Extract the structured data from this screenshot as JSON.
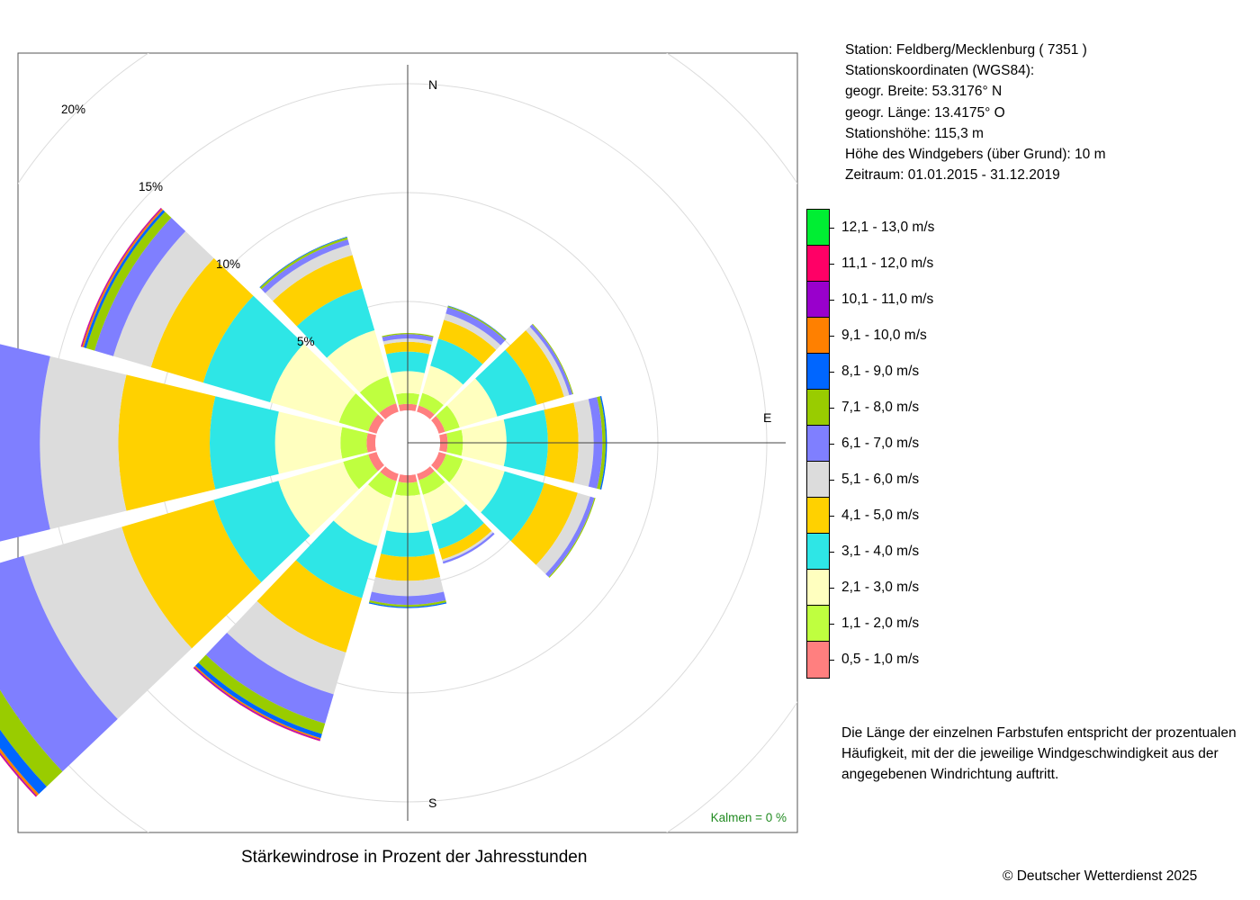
{
  "station": {
    "lines": [
      "Station:  Feldberg/Mecklenburg  ( 7351 )",
      "Stationskoordinaten (WGS84):",
      "geogr. Breite: 53.3176° N",
      "geogr. Länge: 13.4175° O",
      "Stationshöhe: 115,3 m",
      "Höhe des Windgebers (über Grund): 10 m",
      "Zeitraum: 01.01.2015 - 31.12.2019"
    ]
  },
  "note": [
    "Die Länge der einzelnen Farbstufen entspricht der prozentualen",
    "Häufigkeit, mit der die jeweilige Windgeschwindigkeit aus der",
    "angegebenen Windrichtung auftritt."
  ],
  "copyright": "© Deutscher Wetterdienst  2025",
  "chart_data": {
    "type": "windrose",
    "title": "Stärkewindrose in Prozent der Jahresstunden",
    "calm_label": "Kalmen  =  0 %",
    "compass": {
      "N": "N",
      "E": "E",
      "S": "S"
    },
    "radial_ticks": [
      {
        "value": 5,
        "label": "5%"
      },
      {
        "value": 10,
        "label": "10%"
      },
      {
        "value": 15,
        "label": "15%"
      },
      {
        "value": 20,
        "label": "20%"
      }
    ],
    "rmax": 20,
    "sector_width_deg": 30,
    "directions": [
      0,
      30,
      60,
      90,
      120,
      150,
      180,
      210,
      240,
      270,
      300,
      330
    ],
    "classes": [
      {
        "label": "0,5 - 1,0 m/s",
        "color": "#FF7F7F"
      },
      {
        "label": "1,1 - 2,0 m/s",
        "color": "#BFFF3F"
      },
      {
        "label": "2,1 - 3,0 m/s",
        "color": "#FFFFBF"
      },
      {
        "label": "3,1 - 4,0 m/s",
        "color": "#2EE6E6"
      },
      {
        "label": "4,1 - 5,0 m/s",
        "color": "#FFD100"
      },
      {
        "label": "5,1 - 6,0 m/s",
        "color": "#DCDCDC"
      },
      {
        "label": "6,1 - 7,0 m/s",
        "color": "#7F7FFF"
      },
      {
        "label": "7,1 - 8,0 m/s",
        "color": "#99CC00"
      },
      {
        "label": "8,1 - 9,0 m/s",
        "color": "#0066FF"
      },
      {
        "label": "9,1 - 10,0 m/s",
        "color": "#FF8000"
      },
      {
        "label": "10,1 - 11,0 m/s",
        "color": "#9900CC"
      },
      {
        "label": "11,1 - 12,0 m/s",
        "color": "#FF0066"
      },
      {
        "label": "12,1 - 13,0 m/s",
        "color": "#00EE33"
      }
    ],
    "series": [
      {
        "direction": 0,
        "values": [
          0.3,
          0.5,
          1.0,
          0.9,
          0.45,
          0.15,
          0.2,
          0.05,
          0.0,
          0.0,
          0.0,
          0.0,
          0.0
        ]
      },
      {
        "direction": 30,
        "values": [
          0.3,
          0.6,
          1.3,
          1.3,
          0.9,
          0.3,
          0.3,
          0.06,
          0.02,
          0.0,
          0.0,
          0.0,
          0.0
        ]
      },
      {
        "direction": 60,
        "values": [
          0.3,
          0.7,
          1.8,
          1.9,
          1.3,
          0.25,
          0.15,
          0.04,
          0.0,
          0.0,
          0.0,
          0.0,
          0.0
        ]
      },
      {
        "direction": 90,
        "values": [
          0.35,
          0.7,
          2.0,
          1.9,
          1.4,
          0.7,
          0.4,
          0.15,
          0.06,
          0.0,
          0.0,
          0.0,
          0.0
        ]
      },
      {
        "direction": 120,
        "values": [
          0.35,
          0.8,
          2.0,
          1.9,
          1.6,
          0.6,
          0.2,
          0.05,
          0.0,
          0.0,
          0.0,
          0.0,
          0.0
        ]
      },
      {
        "direction": 150,
        "values": [
          0.3,
          0.7,
          1.4,
          1.2,
          0.5,
          0.1,
          0.1,
          0.0,
          0.0,
          0.0,
          0.0,
          0.0,
          0.0
        ]
      },
      {
        "direction": 180,
        "values": [
          0.35,
          0.6,
          1.7,
          1.1,
          1.1,
          0.7,
          0.4,
          0.1,
          0.05,
          0.0,
          0.0,
          0.0,
          0.0
        ]
      },
      {
        "direction": 210,
        "values": [
          0.35,
          0.8,
          2.3,
          2.5,
          2.6,
          2.0,
          1.4,
          0.5,
          0.2,
          0.07,
          0.05,
          0.02,
          0.0
        ]
      },
      {
        "direction": 240,
        "values": [
          0.4,
          1.2,
          3.1,
          3.1,
          4.4,
          4.7,
          3.5,
          1.0,
          0.5,
          0.12,
          0.05,
          0.02,
          0.0
        ]
      },
      {
        "direction": 270,
        "values": [
          0.4,
          1.2,
          3.0,
          3.0,
          4.2,
          3.6,
          2.4,
          1.6,
          0.5,
          0.3,
          0.1,
          0.05,
          0.03
        ]
      },
      {
        "direction": 300,
        "values": [
          0.4,
          1.4,
          3.3,
          3.2,
          2.5,
          1.8,
          0.9,
          0.4,
          0.12,
          0.08,
          0.04,
          0.02,
          0.0
        ]
      },
      {
        "direction": 330,
        "values": [
          0.4,
          1.3,
          2.2,
          2.0,
          1.6,
          0.5,
          0.25,
          0.1,
          0.03,
          0.0,
          0.0,
          0.0,
          0.0
        ]
      }
    ]
  }
}
